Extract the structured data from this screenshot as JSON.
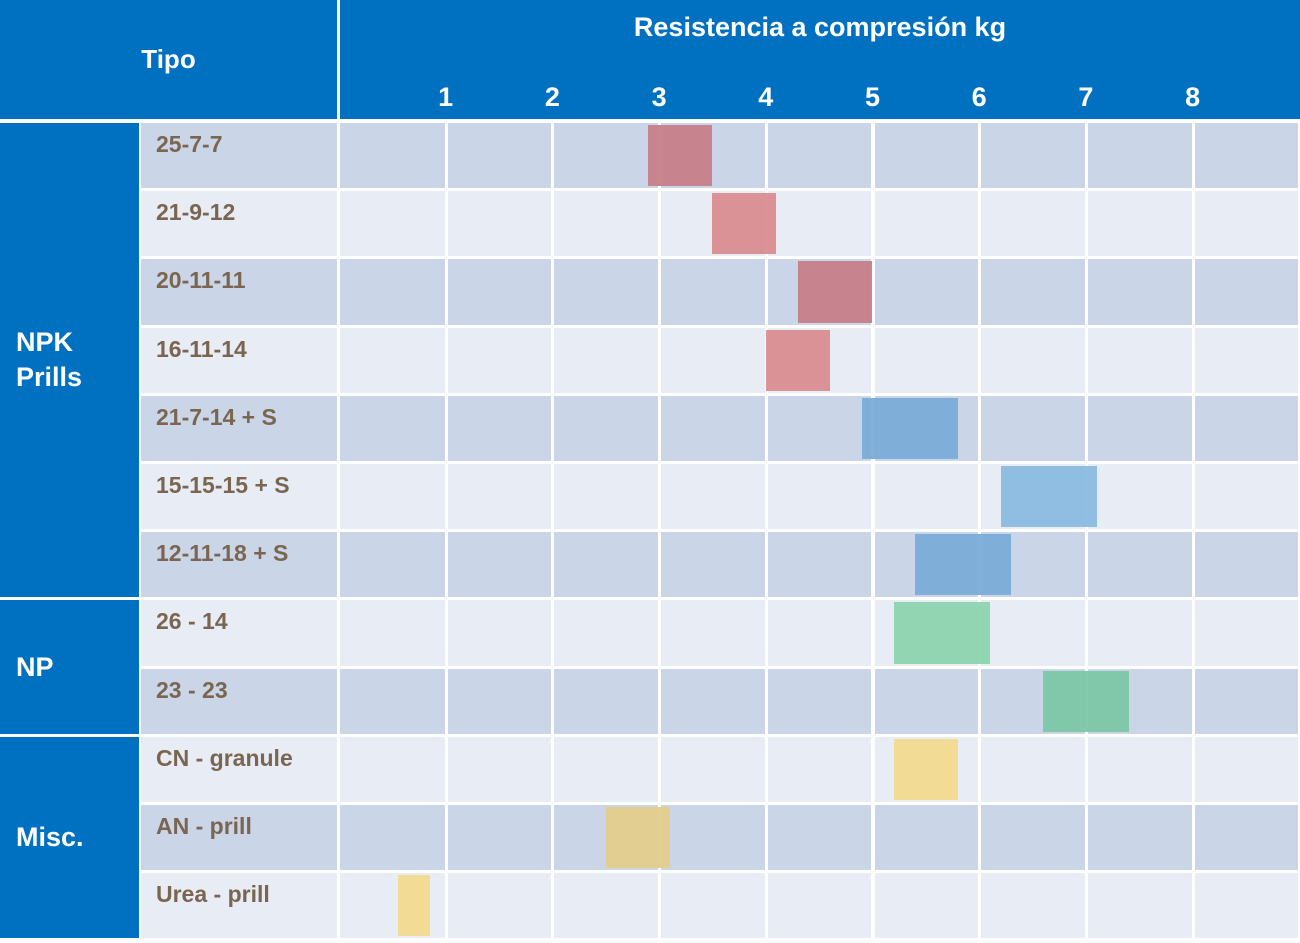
{
  "header": {
    "tipo": "Tipo",
    "title": "Resistencia a compresión kg"
  },
  "chart_data": {
    "type": "range-bar",
    "title": "Resistencia a compresión kg",
    "xlim": [
      0,
      9
    ],
    "ticks": [
      "1",
      "2",
      "3",
      "4",
      "5",
      "6",
      "7",
      "8"
    ],
    "groups": [
      {
        "name": "NPK Prills",
        "rows": [
          0,
          1,
          2,
          3,
          4,
          5,
          6
        ]
      },
      {
        "name": "NP",
        "rows": [
          7,
          8
        ]
      },
      {
        "name": "Misc.",
        "rows": [
          9,
          10,
          11
        ]
      }
    ],
    "rows": [
      {
        "label": "25-7-7",
        "min": 2.9,
        "max": 3.5,
        "color": "#c77f89"
      },
      {
        "label": "21-9-12",
        "min": 3.5,
        "max": 4.1,
        "color": "#da8d90"
      },
      {
        "label": "20-11-11",
        "min": 4.3,
        "max": 5.0,
        "color": "#c77f89"
      },
      {
        "label": "16-11-14",
        "min": 4.0,
        "max": 4.6,
        "color": "#da8d90"
      },
      {
        "label": "21-7-14 + S",
        "min": 4.9,
        "max": 5.8,
        "color": "#7aacd7"
      },
      {
        "label": "15-15-15 + S",
        "min": 6.2,
        "max": 7.1,
        "color": "#8bbbe0"
      },
      {
        "label": "12-11-18 + S",
        "min": 5.4,
        "max": 6.3,
        "color": "#7aacd7"
      },
      {
        "label": "26 - 14",
        "min": 5.2,
        "max": 6.1,
        "color": "#8dd4ae"
      },
      {
        "label": "23 - 23",
        "min": 6.6,
        "max": 7.4,
        "color": "#7cc6a6"
      },
      {
        "label": "CN - granule",
        "min": 5.2,
        "max": 5.8,
        "color": "#f2da8f"
      },
      {
        "label": "AN - prill",
        "min": 2.5,
        "max": 3.1,
        "color": "#e2cd8b"
      },
      {
        "label": "Urea - prill",
        "min": 0.55,
        "max": 0.85,
        "color": "#f2da8f"
      }
    ],
    "row_colors": [
      "#cbd5e8",
      "#e8ecf5"
    ],
    "header_color": "#0070c0"
  }
}
